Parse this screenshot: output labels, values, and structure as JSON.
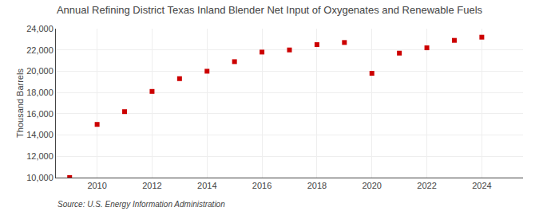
{
  "chart_data": {
    "type": "scatter",
    "title": "Annual Refining District Texas Inland Blender Net Input of Oxygenates and Renewable Fuels",
    "ylabel": "Thousand Barrels",
    "annotations": [
      "Source: U.S. Energy Information Administration"
    ],
    "x": [
      2009,
      2010,
      2011,
      2012,
      2013,
      2014,
      2015,
      2016,
      2017,
      2018,
      2019,
      2020,
      2021,
      2022,
      2023,
      2024
    ],
    "values": [
      10000,
      15000,
      16200,
      18100,
      19300,
      20000,
      20900,
      21800,
      22000,
      22500,
      22700,
      19800,
      21700,
      22200,
      22900,
      23200
    ],
    "color": "#cc0000",
    "marker": "square",
    "xlim": [
      2008.5,
      2025.5
    ],
    "xticks": [
      2010,
      2012,
      2014,
      2016,
      2018,
      2020,
      2022,
      2024
    ],
    "ylim": [
      10000,
      24000
    ],
    "yticks": [
      {
        "value": 10000,
        "label": "10,000"
      },
      {
        "value": 12000,
        "label": "12,000"
      },
      {
        "value": 14000,
        "label": "14,000"
      },
      {
        "value": 16000,
        "label": "16,000"
      },
      {
        "value": 18000,
        "label": "18,000"
      },
      {
        "value": 20000,
        "label": "20,000"
      },
      {
        "value": 22000,
        "label": "22,000"
      },
      {
        "value": 24000,
        "label": "24,000"
      }
    ],
    "grid": true
  }
}
